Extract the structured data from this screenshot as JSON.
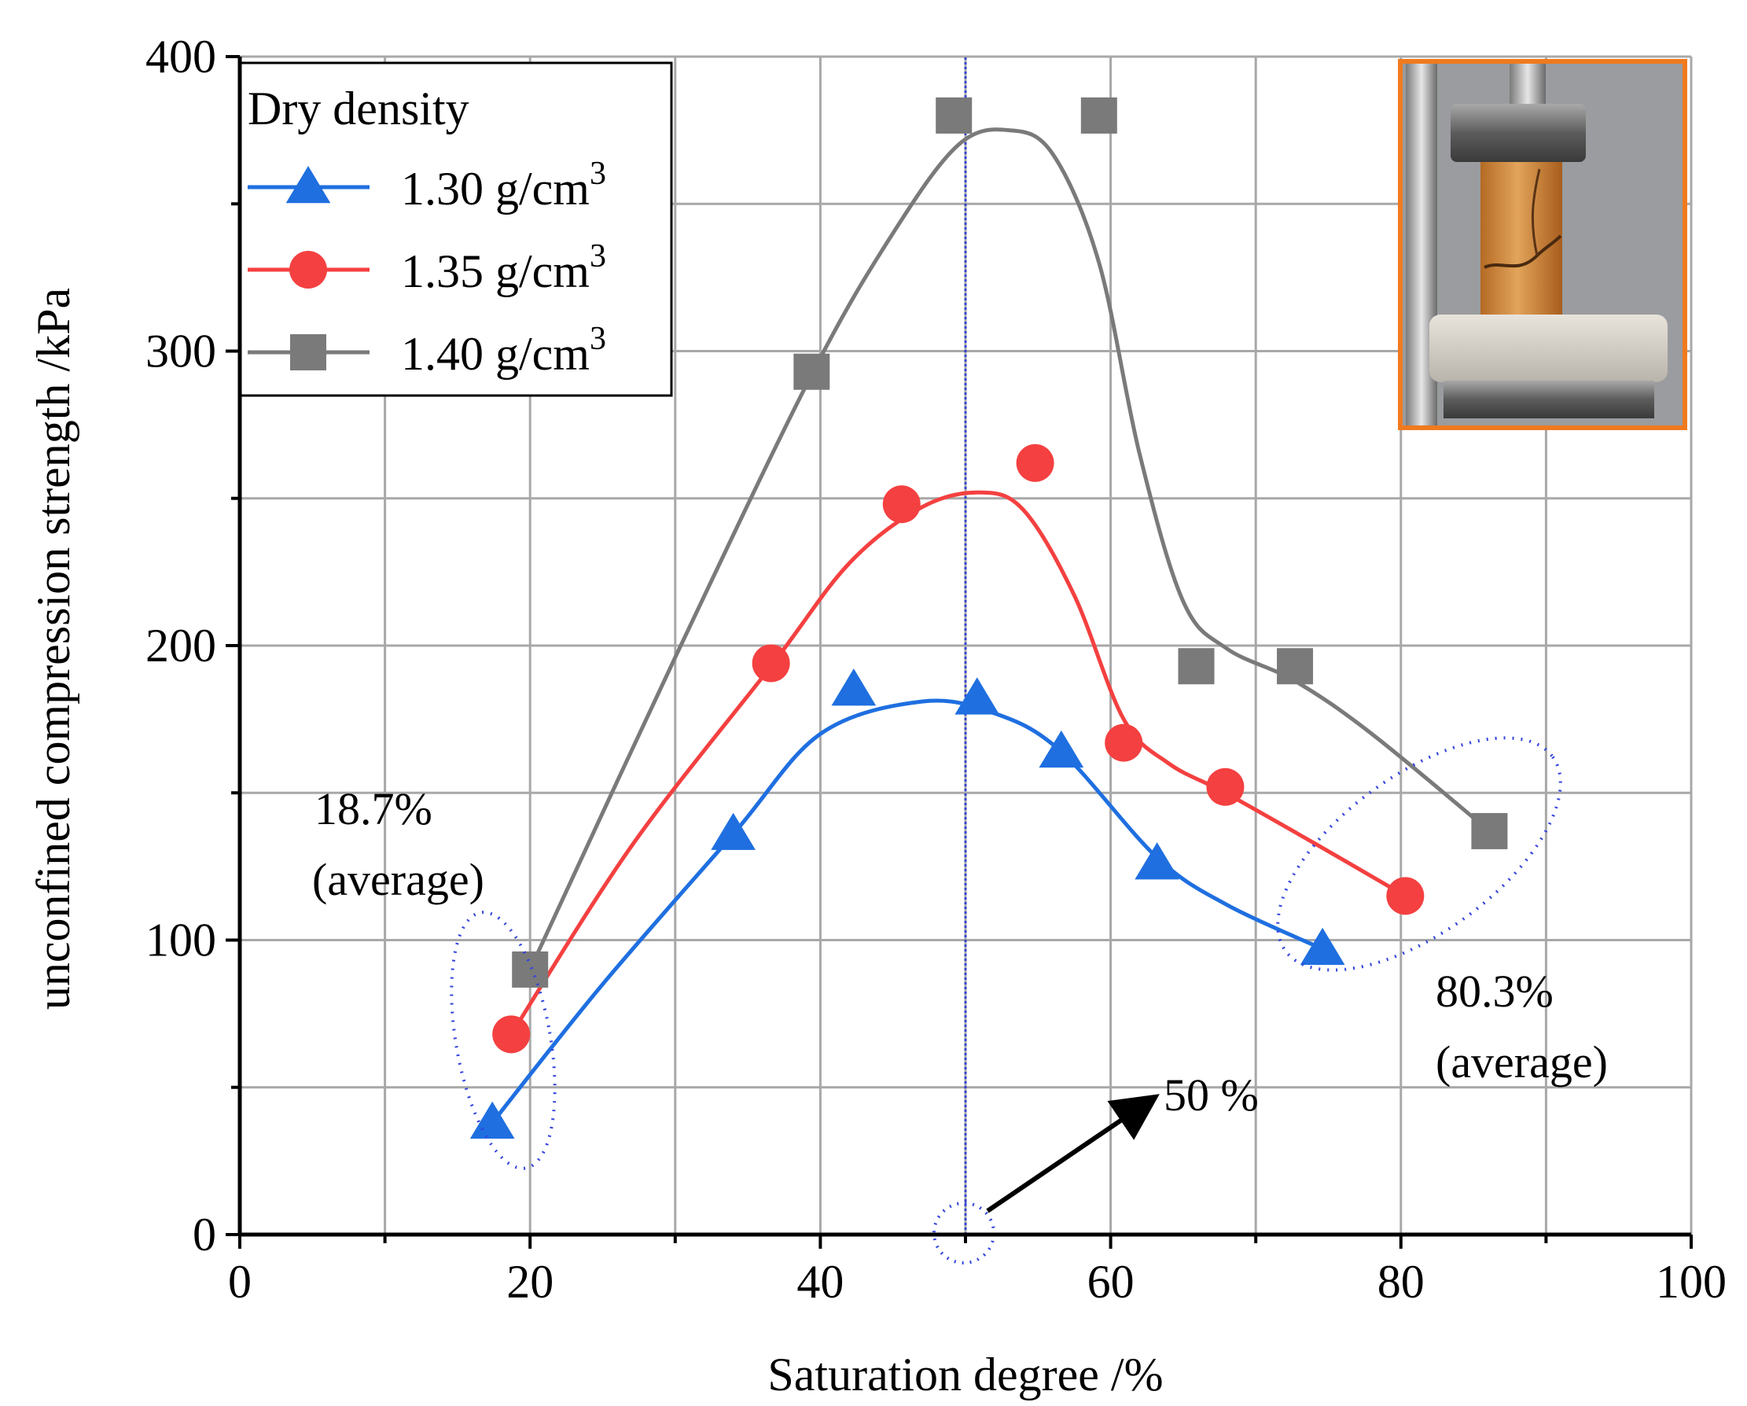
{
  "chart_data": {
    "type": "line",
    "xlabel": "Saturation degree /%",
    "ylabel": "unconfined compression strength /kPa",
    "xlim": [
      0,
      100
    ],
    "ylim": [
      0,
      400
    ],
    "xticks": [
      0,
      20,
      40,
      60,
      80,
      100
    ],
    "yticks": [
      0,
      100,
      200,
      300,
      400
    ],
    "grid": true,
    "legend": {
      "title": "Dry density",
      "position": "top-left"
    },
    "series": [
      {
        "name": "1.30 g/cm",
        "superscript": "3",
        "marker": "triangle",
        "color": "#1f6fe0",
        "points": [
          [
            17.4,
            38
          ],
          [
            34,
            136
          ],
          [
            42.3,
            185
          ],
          [
            50.8,
            182
          ],
          [
            56.6,
            164
          ],
          [
            63.2,
            126
          ],
          [
            74.6,
            97
          ]
        ],
        "curve": [
          [
            17.4,
            38
          ],
          [
            25,
            85
          ],
          [
            34,
            136
          ],
          [
            40,
            170
          ],
          [
            47,
            181
          ],
          [
            52,
            177
          ],
          [
            56.6,
            164
          ],
          [
            63.2,
            128
          ],
          [
            68,
            112
          ],
          [
            74.6,
            97
          ]
        ]
      },
      {
        "name": "1.35 g/cm",
        "superscript": "3",
        "marker": "circle",
        "color": "#f44040",
        "points": [
          [
            18.7,
            68
          ],
          [
            36.6,
            194
          ],
          [
            45.6,
            248
          ],
          [
            54.8,
            262
          ],
          [
            60.9,
            167
          ],
          [
            67.9,
            152
          ],
          [
            80.3,
            115
          ]
        ],
        "curve": [
          [
            18.7,
            68
          ],
          [
            27,
            132
          ],
          [
            36.6,
            193
          ],
          [
            42,
            228
          ],
          [
            47,
            247
          ],
          [
            51,
            252
          ],
          [
            54,
            246
          ],
          [
            57.5,
            217
          ],
          [
            60.9,
            175
          ],
          [
            64,
            160
          ],
          [
            67.9,
            150
          ],
          [
            74,
            133
          ],
          [
            80.3,
            115
          ]
        ]
      },
      {
        "name": "1.40 g/cm",
        "superscript": "3",
        "marker": "square",
        "color": "#7a7a7a",
        "points": [
          [
            20,
            90
          ],
          [
            39.4,
            293
          ],
          [
            49.2,
            380
          ],
          [
            59.2,
            380
          ],
          [
            65.9,
            193
          ],
          [
            72.7,
            193
          ],
          [
            86.1,
            137
          ]
        ],
        "curve": [
          [
            20,
            90
          ],
          [
            30,
            196
          ],
          [
            39.4,
            292
          ],
          [
            45,
            340
          ],
          [
            49.5,
            370
          ],
          [
            53,
            375
          ],
          [
            56,
            367
          ],
          [
            59.2,
            330
          ],
          [
            62,
            265
          ],
          [
            65,
            215
          ],
          [
            68,
            199
          ],
          [
            72.7,
            188
          ],
          [
            78,
            170
          ],
          [
            86.1,
            137
          ]
        ]
      }
    ],
    "vertical_line": {
      "x": 50,
      "color": "#3344cc"
    },
    "annotations": [
      {
        "line1": "18.7%",
        "line2": "(average)"
      },
      {
        "line1": "80.3%",
        "line2": "(average)"
      },
      {
        "text": "50 %"
      }
    ]
  }
}
